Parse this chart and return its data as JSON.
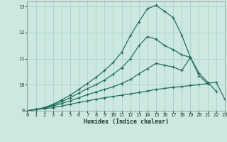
{
  "xlabel": "Humidex (Indice chaleur)",
  "background_color": "#cce8e0",
  "grid_color": "#b0d4cc",
  "line_color": "#1a6b5a",
  "xlim": [
    0,
    23
  ],
  "ylim": [
    9.0,
    13.2
  ],
  "yticks": [
    9,
    10,
    11,
    12,
    13
  ],
  "xticks": [
    0,
    1,
    2,
    3,
    4,
    5,
    6,
    7,
    8,
    9,
    10,
    11,
    12,
    13,
    14,
    15,
    16,
    17,
    18,
    19,
    20,
    21,
    22,
    23
  ],
  "x": [
    0,
    1,
    2,
    3,
    4,
    5,
    6,
    7,
    8,
    9,
    10,
    11,
    12,
    13,
    14,
    15,
    16,
    17,
    18,
    19,
    20,
    21,
    22,
    23
  ],
  "line1": [
    9.0,
    9.05,
    9.08,
    9.12,
    9.18,
    9.25,
    9.32,
    9.38,
    9.44,
    9.5,
    9.55,
    9.6,
    9.65,
    9.7,
    9.76,
    9.82,
    9.86,
    9.9,
    9.93,
    9.97,
    10.0,
    10.05,
    10.1,
    9.45
  ],
  "line2": [
    9.0,
    9.05,
    9.1,
    9.18,
    9.28,
    9.38,
    9.5,
    9.62,
    9.72,
    9.82,
    9.92,
    10.05,
    10.2,
    10.42,
    10.62,
    10.82,
    10.75,
    10.68,
    10.55,
    11.05,
    10.45,
    10.1,
    9.75,
    null
  ],
  "line3": [
    9.0,
    9.05,
    9.12,
    9.22,
    9.35,
    9.5,
    9.68,
    9.85,
    10.0,
    10.18,
    10.4,
    10.65,
    11.0,
    11.5,
    11.85,
    11.75,
    11.5,
    11.35,
    11.15,
    11.05,
    10.35,
    10.05,
    null,
    null
  ],
  "line4": [
    9.0,
    9.05,
    9.12,
    9.25,
    9.42,
    9.6,
    9.82,
    10.05,
    10.28,
    10.55,
    10.85,
    11.25,
    11.88,
    12.42,
    12.92,
    13.05,
    12.82,
    12.58,
    11.9,
    11.05,
    null,
    null,
    null,
    null
  ]
}
